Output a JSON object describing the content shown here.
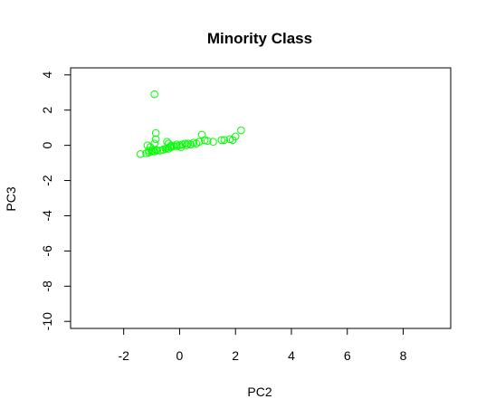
{
  "chart_data": {
    "type": "scatter",
    "title": "Minority Class",
    "xlabel": "PC2",
    "ylabel": "PC3",
    "xlim": [
      -3.9,
      9.7
    ],
    "ylim": [
      -10.4,
      4.4
    ],
    "xticks": [
      -2,
      0,
      2,
      4,
      6,
      8
    ],
    "xtick_labels": [
      "-2",
      "0",
      "2",
      "4",
      "6",
      "8"
    ],
    "yticks": [
      -10,
      -8,
      -6,
      -4,
      -2,
      0,
      2,
      4
    ],
    "ytick_labels": [
      "-10",
      "-8",
      "-6",
      "-4",
      "-2",
      "0",
      "2",
      "4"
    ],
    "grid": false,
    "legend": "none",
    "marker": "open-circle",
    "color": "#00ff00",
    "series": [
      {
        "x": [
          -0.9,
          -0.85,
          -0.85,
          -0.9,
          -0.45,
          -0.4,
          -1.15,
          -1.05,
          -0.3,
          -0.1,
          0.2,
          0.5,
          0.7,
          0.9,
          1.0,
          1.2,
          1.5,
          1.8,
          2.0,
          2.2,
          0.8,
          1.6,
          -1.4,
          -1.2,
          -1.1,
          -1.0,
          -0.95,
          -0.9,
          -0.8,
          -0.7,
          -0.6,
          -0.5,
          -0.45,
          -0.4,
          -0.35,
          -0.3,
          -0.2,
          -0.1,
          0.0,
          0.1,
          0.3,
          0.4,
          -1.1,
          -0.85,
          -0.6,
          0.05,
          0.25,
          0.6,
          1.9
        ],
        "y": [
          2.9,
          0.7,
          0.35,
          0.1,
          0.2,
          0.1,
          0.0,
          -0.1,
          0.0,
          0.05,
          0.1,
          0.15,
          0.2,
          0.3,
          0.25,
          0.2,
          0.3,
          0.35,
          0.5,
          0.85,
          0.6,
          0.3,
          -0.5,
          -0.45,
          -0.4,
          -0.35,
          -0.3,
          -0.35,
          -0.3,
          -0.3,
          -0.25,
          -0.2,
          -0.15,
          -0.2,
          -0.1,
          -0.1,
          -0.05,
          -0.05,
          0.0,
          0.05,
          0.1,
          0.05,
          -0.3,
          -0.25,
          -0.25,
          -0.1,
          0.0,
          0.1,
          0.3
        ]
      }
    ]
  }
}
